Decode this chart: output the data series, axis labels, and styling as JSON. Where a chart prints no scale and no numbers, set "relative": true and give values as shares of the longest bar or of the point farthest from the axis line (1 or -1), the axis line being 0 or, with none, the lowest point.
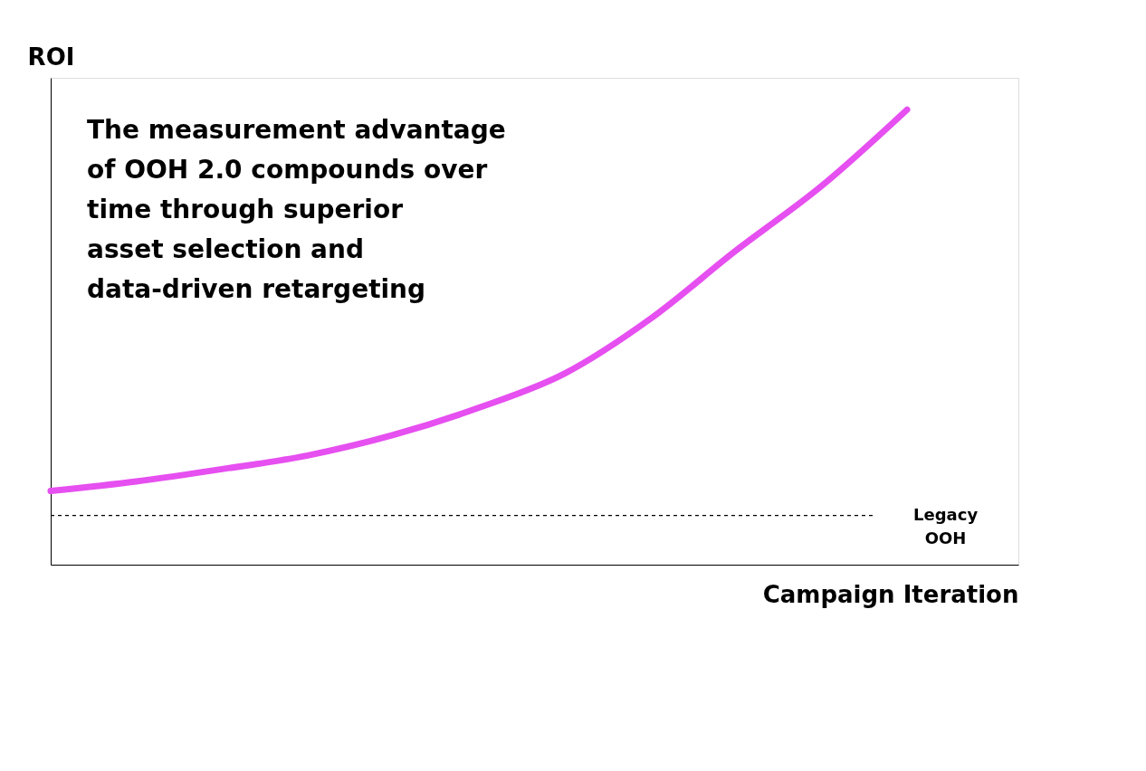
{
  "chart_data": {
    "type": "line",
    "relative": true,
    "xlabel": "Campaign Iteration",
    "ylabel": "ROI",
    "categories": [
      null,
      null,
      null,
      null,
      null,
      null,
      null,
      null,
      null,
      null,
      null
    ],
    "series": [
      {
        "color": "#e64ff0",
        "values": [
          0.162,
          0.183,
          0.21,
          0.24,
          0.285,
          0.345,
          0.42,
          0.54,
          0.69,
          0.832,
          1.0
        ]
      }
    ],
    "ref_lines": [
      {
        "axis": "y",
        "value": 0.108,
        "label": "Legacy OOH",
        "color": "#000000",
        "line_style": "dashed"
      }
    ],
    "annotations": [
      "The measurement advantage of OOH 2.0 compounds over time through superior asset selection and data-driven retargeting"
    ],
    "grid": false,
    "marker": "none",
    "line_style": "solid"
  }
}
